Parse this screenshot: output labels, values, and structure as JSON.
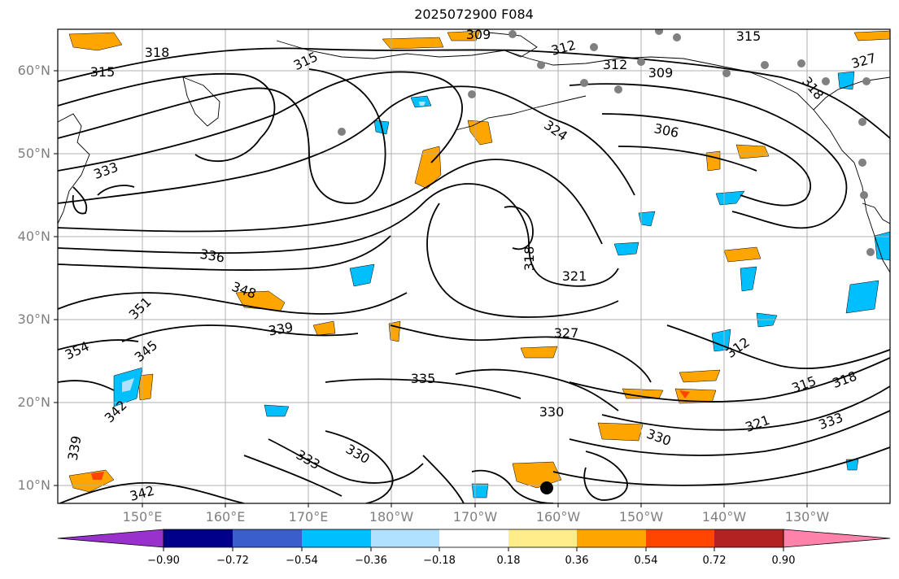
{
  "title": "2025072900 F084",
  "map": {
    "lat_labels": [
      "60°N",
      "50°N",
      "40°N",
      "30°N",
      "20°N",
      "10°N"
    ],
    "lon_labels": [
      "150°E",
      "160°E",
      "170°E",
      "180°W",
      "170°W",
      "160°W",
      "150°W",
      "140°W",
      "130°W"
    ],
    "contour_labels": [
      "309",
      "312",
      "315",
      "318",
      "315",
      "315",
      "327",
      "312",
      "309",
      "318",
      "324",
      "306",
      "333",
      "336",
      "318",
      "321",
      "348",
      "351",
      "339",
      "327",
      "354",
      "345",
      "335",
      "312",
      "315",
      "318",
      "342",
      "330",
      "321",
      "333",
      "339",
      "333",
      "330",
      "330",
      "342"
    ],
    "grid": true,
    "projection": "cylindrical"
  },
  "colorbar": {
    "ticks": [
      "−0.90",
      "−0.72",
      "−0.54",
      "−0.36",
      "−0.18",
      "0.18",
      "0.36",
      "0.54",
      "0.72",
      "0.90"
    ],
    "colors": [
      "#9932cc",
      "#00008b",
      "#3a5fcd",
      "#00bfff",
      "#b0e2ff",
      "#ffffff",
      "#ffec8b",
      "#ffa500",
      "#ff4500",
      "#b22222",
      "#ff82ab"
    ]
  }
}
